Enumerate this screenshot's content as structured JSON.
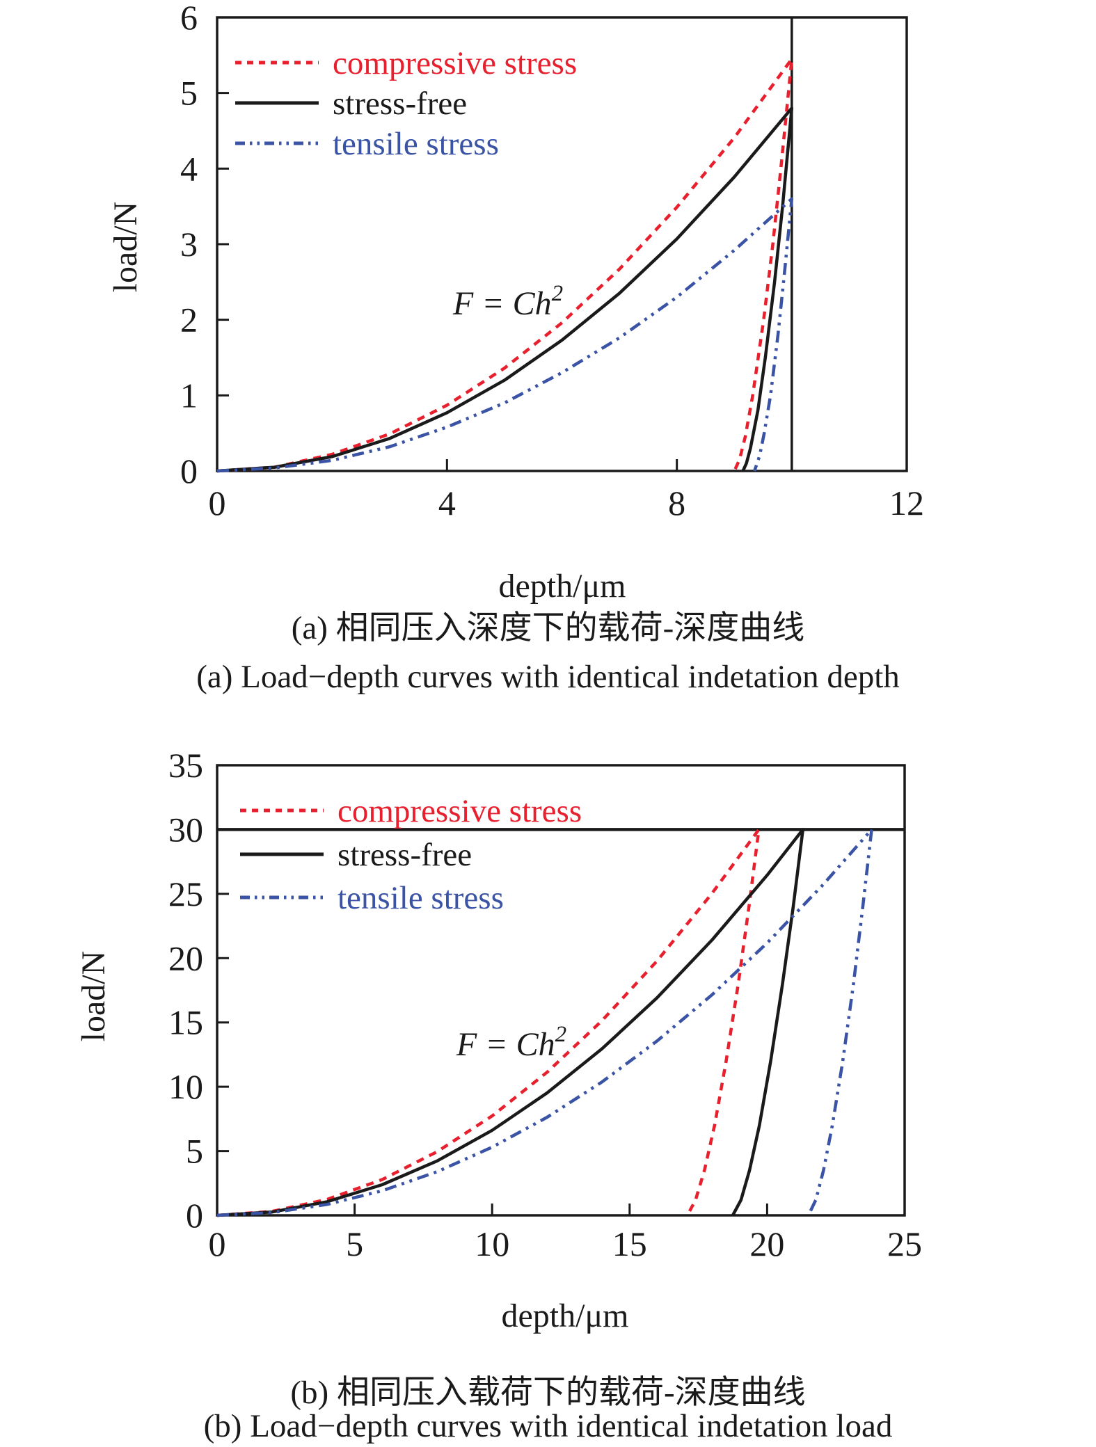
{
  "colors": {
    "compressive": "#e8202e",
    "stress_free": "#1a1a1a",
    "tensile": "#3a53a5",
    "axis": "#1a1a1a",
    "background": "#ffffff"
  },
  "chart_data": [
    {
      "type": "line",
      "panel": "a",
      "xlabel": "depth/μm",
      "ylabel": "load/N",
      "xlim": [
        0,
        12
      ],
      "ylim": [
        0,
        6
      ],
      "x_ticks": [
        0,
        4,
        8,
        12
      ],
      "y_ticks": [
        0,
        1,
        2,
        3,
        4,
        5,
        6
      ],
      "grid": false,
      "legend_position": "top-left-inside",
      "annotation": {
        "text": "F = Ch",
        "sup": "2"
      },
      "ref_line": {
        "orientation": "vertical",
        "x": 10
      },
      "caption_zh": "(a) 相同压入深度下的载荷-深度曲线",
      "caption_en": "(a) Load−depth curves with identical indetation depth",
      "legend": [
        {
          "label": "compressive stress",
          "color": "#e8202e",
          "style": "dashed"
        },
        {
          "label": "stress-free",
          "color": "#1a1a1a",
          "style": "solid"
        },
        {
          "label": "tensile stress",
          "color": "#3a53a5",
          "style": "dash-dot-dot"
        }
      ],
      "series": [
        {
          "name": "compressive stress",
          "color": "#e8202e",
          "style": "dashed",
          "points": [
            [
              0,
              0
            ],
            [
              1,
              0.05
            ],
            [
              2,
              0.22
            ],
            [
              3,
              0.49
            ],
            [
              4,
              0.87
            ],
            [
              5,
              1.36
            ],
            [
              6,
              1.96
            ],
            [
              7,
              2.67
            ],
            [
              8,
              3.49
            ],
            [
              9,
              4.41
            ],
            [
              10,
              5.45
            ],
            [
              9.81,
              4
            ],
            [
              9.67,
              3
            ],
            [
              9.51,
              2
            ],
            [
              9.32,
              1
            ],
            [
              9.19,
              0.45
            ],
            [
              9.09,
              0.15
            ],
            [
              9,
              0
            ]
          ]
        },
        {
          "name": "stress-free",
          "color": "#1a1a1a",
          "style": "solid",
          "points": [
            [
              0,
              0
            ],
            [
              1,
              0.05
            ],
            [
              2,
              0.19
            ],
            [
              3,
              0.43
            ],
            [
              4,
              0.77
            ],
            [
              5,
              1.2
            ],
            [
              6,
              1.73
            ],
            [
              7,
              2.35
            ],
            [
              8,
              3.07
            ],
            [
              9,
              3.89
            ],
            [
              10,
              4.8
            ],
            [
              9.84,
              3.5
            ],
            [
              9.7,
              2.5
            ],
            [
              9.54,
              1.5
            ],
            [
              9.41,
              0.8
            ],
            [
              9.28,
              0.3
            ],
            [
              9.21,
              0.1
            ],
            [
              9.15,
              0
            ]
          ]
        },
        {
          "name": "tensile stress",
          "color": "#3a53a5",
          "style": "dash-dot-dot",
          "points": [
            [
              0,
              0
            ],
            [
              1,
              0.04
            ],
            [
              2,
              0.14
            ],
            [
              3,
              0.32
            ],
            [
              4,
              0.58
            ],
            [
              5,
              0.9
            ],
            [
              6,
              1.3
            ],
            [
              7,
              1.76
            ],
            [
              8,
              2.3
            ],
            [
              9,
              2.92
            ],
            [
              10,
              3.6
            ],
            [
              9.87,
              2.6
            ],
            [
              9.76,
              1.8
            ],
            [
              9.63,
              1
            ],
            [
              9.52,
              0.5
            ],
            [
              9.44,
              0.2
            ],
            [
              9.35,
              0
            ]
          ]
        }
      ]
    },
    {
      "type": "line",
      "panel": "b",
      "xlabel": "depth/μm",
      "ylabel": "load/N",
      "xlim": [
        0,
        25
      ],
      "ylim": [
        0,
        35
      ],
      "x_ticks": [
        0,
        5,
        10,
        15,
        20,
        25
      ],
      "y_ticks": [
        0,
        5,
        10,
        15,
        20,
        25,
        30,
        35
      ],
      "grid": false,
      "legend_position": "top-left-inside",
      "annotation": {
        "text": "F = Ch",
        "sup": "2"
      },
      "ref_line": {
        "orientation": "horizontal",
        "y": 30
      },
      "caption_zh": "(b) 相同压入载荷下的载荷-深度曲线",
      "caption_en": "(b) Load−depth curves with identical indetation load",
      "legend": [
        {
          "label": "compressive stress",
          "color": "#e8202e",
          "style": "dashed"
        },
        {
          "label": "stress-free",
          "color": "#1a1a1a",
          "style": "solid"
        },
        {
          "label": "tensile stress",
          "color": "#3a53a5",
          "style": "dash-dot-dot"
        }
      ],
      "series": [
        {
          "name": "compressive stress",
          "color": "#e8202e",
          "style": "dashed",
          "points": [
            [
              0,
              0
            ],
            [
              2,
              0.31
            ],
            [
              4,
              1.24
            ],
            [
              6,
              2.78
            ],
            [
              8,
              4.95
            ],
            [
              10,
              7.73
            ],
            [
              12,
              11.13
            ],
            [
              14,
              15.15
            ],
            [
              16,
              19.79
            ],
            [
              18,
              25.05
            ],
            [
              19.7,
              30
            ],
            [
              19.34,
              24
            ],
            [
              18.95,
              18
            ],
            [
              18.51,
              12
            ],
            [
              18.09,
              7
            ],
            [
              17.72,
              3.5
            ],
            [
              17.4,
              1.2
            ],
            [
              17.1,
              0
            ]
          ]
        },
        {
          "name": "stress-free",
          "color": "#1a1a1a",
          "style": "solid",
          "points": [
            [
              0,
              0
            ],
            [
              2,
              0.26
            ],
            [
              4,
              1.06
            ],
            [
              6,
              2.38
            ],
            [
              8,
              4.23
            ],
            [
              10,
              6.61
            ],
            [
              12,
              9.52
            ],
            [
              14,
              12.96
            ],
            [
              16,
              16.92
            ],
            [
              18,
              21.42
            ],
            [
              20,
              26.45
            ],
            [
              21.3,
              30
            ],
            [
              20.95,
              24
            ],
            [
              20.56,
              18
            ],
            [
              20.13,
              12
            ],
            [
              19.72,
              7
            ],
            [
              19.36,
              3.5
            ],
            [
              19.05,
              1.2
            ],
            [
              18.75,
              0
            ]
          ]
        },
        {
          "name": "tensile stress",
          "color": "#3a53a5",
          "style": "dash-dot-dot",
          "points": [
            [
              0,
              0
            ],
            [
              2,
              0.21
            ],
            [
              4,
              0.85
            ],
            [
              6,
              1.91
            ],
            [
              8,
              3.39
            ],
            [
              10,
              5.3
            ],
            [
              12,
              7.63
            ],
            [
              14,
              10.38
            ],
            [
              16,
              13.56
            ],
            [
              18,
              17.16
            ],
            [
              20,
              21.18
            ],
            [
              22,
              25.63
            ],
            [
              23.8,
              30
            ],
            [
              23.48,
              24
            ],
            [
              23.14,
              18
            ],
            [
              22.75,
              12
            ],
            [
              22.37,
              7
            ],
            [
              22.05,
              3.5
            ],
            [
              21.77,
              1.2
            ],
            [
              21.5,
              0
            ]
          ]
        }
      ]
    }
  ]
}
